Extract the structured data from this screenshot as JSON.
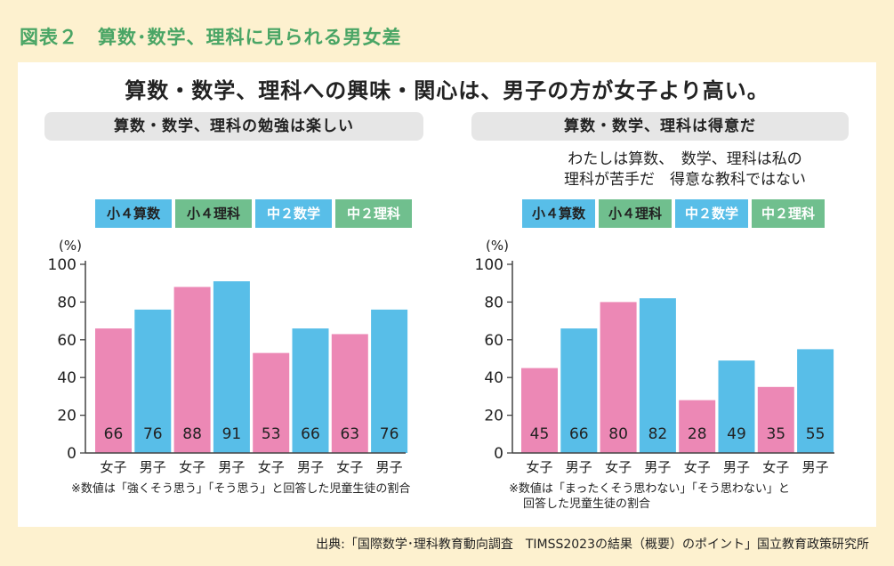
{
  "figure_title": "図表２　算数･数学、理科に見られる男女差",
  "headline": "算数・数学、理科への興味・関心は、男子の方が女子より高い。",
  "source": "出典:「国際数学･理科教育動向調査　TIMSS2023の結果（概要）のポイント」国立教育政策研究所",
  "colors": {
    "female_bar": "#ec88b5",
    "male_bar": "#58bee8",
    "math_legend": "#58bee8",
    "science_legend": "#70bf8e",
    "title_green": "#4aa565"
  },
  "left": {
    "subtitle": "算数・数学、理科の勉強は楽しい",
    "legend": [
      "小４算数",
      "小４理科",
      "中２数学",
      "中２理科"
    ],
    "note": "※数値は「強くそう思う」「そう思う」と回答した児童生徒の割合"
  },
  "right": {
    "subtitle": "算数・数学、理科は得意だ",
    "heading_line1": "わたしは算数、　数学、理科は私の",
    "heading_line2": "理科が苦手だ　得意な教科ではない",
    "legend": [
      "小４算数",
      "小４理科",
      "中２数学",
      "中２理科"
    ],
    "note_line1": "※数値は「まったくそう思わない」「そう思わない」と",
    "note_line2": "回答した児童生徒の割合"
  },
  "chart_data": [
    {
      "type": "bar",
      "title": "算数・数学、理科の勉強は楽しい",
      "ylabel": "(%)",
      "ylim": [
        0,
        100
      ],
      "yticks": [
        0,
        20,
        40,
        60,
        80,
        100
      ],
      "categories": [
        "女子",
        "男子",
        "女子",
        "男子",
        "女子",
        "男子",
        "女子",
        "男子"
      ],
      "groups": [
        "小４算数",
        "小４理科",
        "中２数学",
        "中２理科"
      ],
      "values": [
        66,
        76,
        88,
        91,
        53,
        66,
        63,
        76
      ]
    },
    {
      "type": "bar",
      "title": "算数・数学、理科は得意だ",
      "ylabel": "(%)",
      "ylim": [
        0,
        100
      ],
      "yticks": [
        0,
        20,
        40,
        60,
        80,
        100
      ],
      "categories": [
        "女子",
        "男子",
        "女子",
        "男子",
        "女子",
        "男子",
        "女子",
        "男子"
      ],
      "groups": [
        "小４算数",
        "小４理科",
        "中２数学",
        "中２理科"
      ],
      "values": [
        45,
        66,
        80,
        82,
        28,
        49,
        35,
        55
      ]
    }
  ]
}
